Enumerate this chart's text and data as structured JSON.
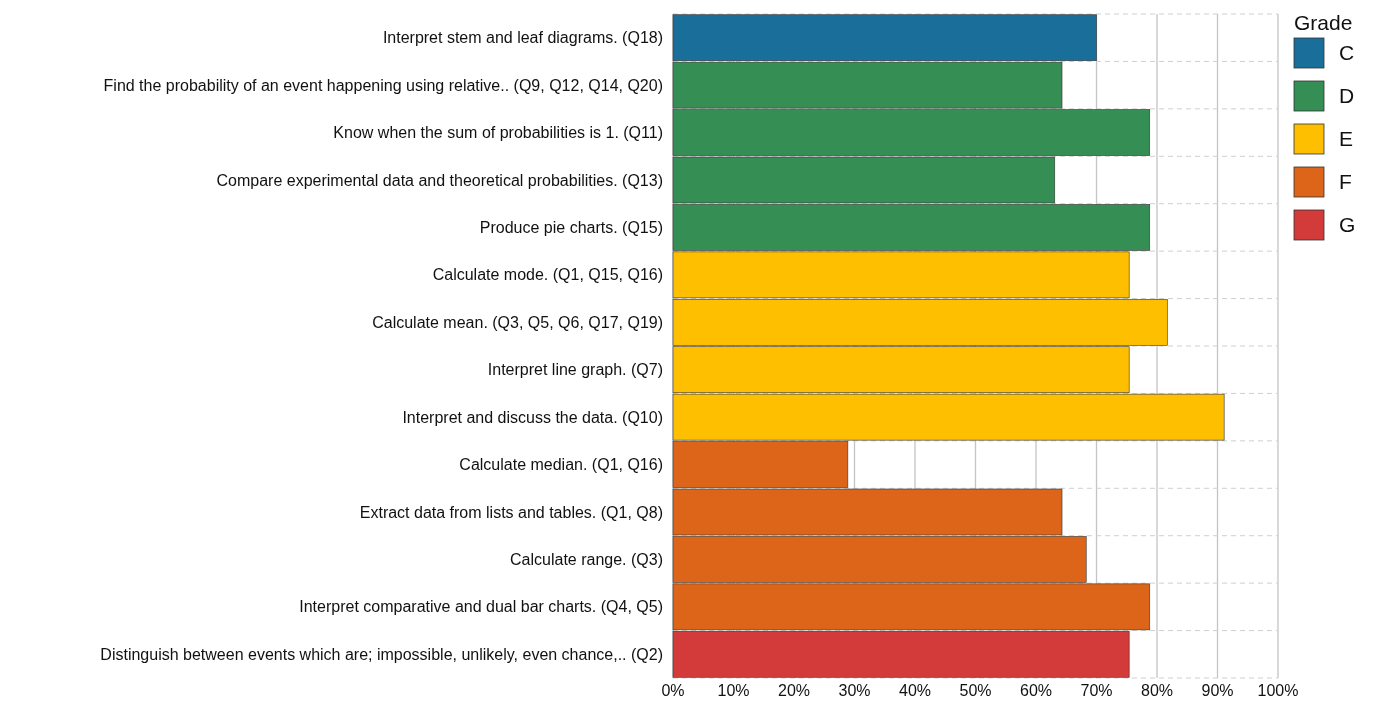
{
  "chart_data": {
    "type": "bar",
    "orientation": "horizontal",
    "legend_title": "Grade",
    "legend": "top right",
    "grid": true,
    "categories": [
      "Interpret stem and leaf diagrams. (Q18)",
      "Find the probability of an event happening using relative.. (Q9, Q12, Q14, Q20)",
      "Know when the sum of probabilities is 1. (Q11)",
      "Compare experimental data and theoretical probabilities. (Q13)",
      "Produce pie charts. (Q15)",
      "Calculate mode. (Q1, Q15, Q16)",
      "Calculate mean. (Q3, Q5, Q6, Q17, Q19)",
      "Interpret line graph. (Q7)",
      "Interpret and discuss the data. (Q10)",
      "Calculate median. (Q1, Q16)",
      "Extract data from lists and tables. (Q1, Q8)",
      "Calculate range. (Q3)",
      "Interpret comparative and dual bar charts. (Q4, Q5)",
      "Distinguish between events which are; impossible, unlikely, even chance,.. (Q2)"
    ],
    "series": [
      {
        "name": "C",
        "color": "#1a6e9a",
        "values": [
          70,
          null,
          null,
          null,
          null,
          null,
          null,
          null,
          null,
          null,
          null,
          null,
          null,
          null
        ]
      },
      {
        "name": "D",
        "color": "#358f54",
        "values": [
          null,
          64.3,
          78.8,
          63.1,
          78.8,
          null,
          null,
          null,
          null,
          null,
          null,
          null,
          null,
          null
        ]
      },
      {
        "name": "E",
        "color": "#fdbf00",
        "values": [
          null,
          null,
          null,
          null,
          null,
          75.4,
          81.7,
          75.4,
          91.1,
          null,
          null,
          null,
          null,
          null
        ]
      },
      {
        "name": "F",
        "color": "#dd6519",
        "values": [
          null,
          null,
          null,
          null,
          null,
          null,
          null,
          null,
          null,
          28.9,
          64.3,
          68.3,
          78.8,
          null
        ]
      },
      {
        "name": "G",
        "color": "#d23b3a",
        "values": [
          null,
          null,
          null,
          null,
          null,
          null,
          null,
          null,
          null,
          null,
          null,
          null,
          null,
          75.4
        ]
      }
    ],
    "xlim": [
      0,
      100
    ],
    "xticks": [
      {
        "value": 0,
        "label": "0%"
      },
      {
        "value": 10,
        "label": "10%"
      },
      {
        "value": 20,
        "label": "20%"
      },
      {
        "value": 30,
        "label": "30%"
      },
      {
        "value": 40,
        "label": "40%"
      },
      {
        "value": 50,
        "label": "50%"
      },
      {
        "value": 60,
        "label": "60%"
      },
      {
        "value": 70,
        "label": "70%"
      },
      {
        "value": 80,
        "label": "80%"
      },
      {
        "value": 90,
        "label": "90%"
      },
      {
        "value": 100,
        "label": "100%"
      }
    ]
  }
}
